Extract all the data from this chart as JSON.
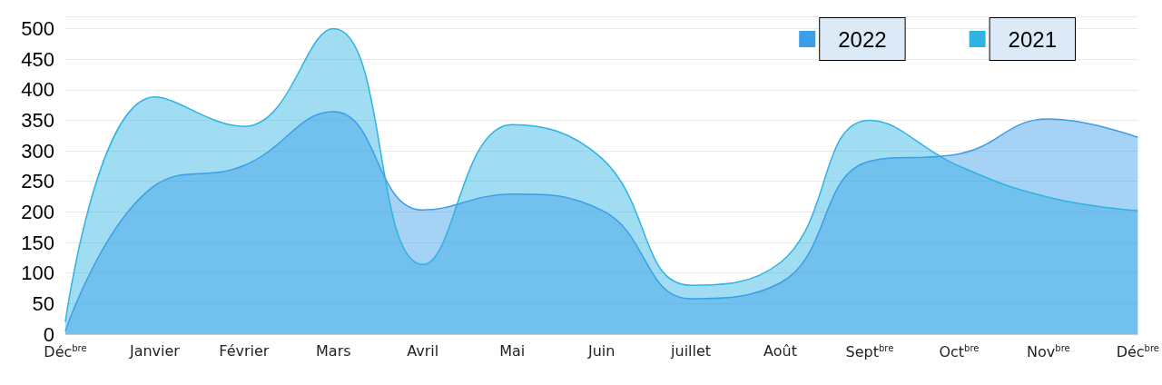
{
  "chart_data": {
    "type": "area",
    "categories": [
      "Déc$^{bre}$",
      "Janvier",
      "Février",
      "Mars",
      "Avril",
      "Mai",
      "Juin",
      "juillet",
      "Août",
      "Sept$^{bre}$",
      "Oct$^{bre}$",
      "Nov$^{bre}$",
      "Déc$^{bre}$"
    ],
    "series": [
      {
        "name": "2021",
        "color": "#2fb3e3",
        "values": [
          20,
          388,
          340,
          500,
          114,
          343,
          288,
          80,
          117,
          350,
          275,
          224,
          202
        ]
      },
      {
        "name": "2022",
        "color": "#3a9ee8",
        "values": [
          5,
          243,
          276,
          364,
          203,
          229,
          203,
          58,
          84,
          283,
          295,
          352,
          322
        ]
      }
    ],
    "ylim": [
      0,
      520
    ],
    "yticks": [
      0,
      50,
      100,
      150,
      200,
      250,
      300,
      350,
      400,
      450,
      500,
      {
        "value": 520,
        "label": null
      }
    ],
    "grid": "y",
    "legend": "top right",
    "marker": "none"
  }
}
